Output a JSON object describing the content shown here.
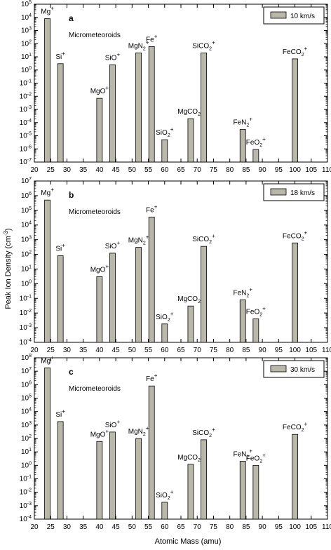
{
  "figure": {
    "xlabel": "Atomic Mass (amu)",
    "ylabel": "Peak Ion Density (cm",
    "ylabel_sup": "-3",
    "ylabel_close": ")"
  },
  "chart_data": [
    {
      "type": "bar",
      "panel": "a",
      "annotation": "Micrometeoroids",
      "legend": "10 km/s",
      "legend_position": "top-right",
      "xlim": [
        20,
        110
      ],
      "xticks": [
        20,
        25,
        30,
        35,
        40,
        45,
        50,
        55,
        60,
        65,
        70,
        75,
        80,
        85,
        90,
        95,
        100,
        105,
        110
      ],
      "ylog": true,
      "yexp": [
        -7,
        5
      ],
      "bar_color": "#b9b7a9",
      "points": [
        {
          "x": 24,
          "y": 8000,
          "label": "Mg",
          "sup": "+"
        },
        {
          "x": 28,
          "y": 3,
          "label": "Si",
          "sup": "+"
        },
        {
          "x": 40,
          "y": 0.007,
          "label": "MgO",
          "sup": "+"
        },
        {
          "x": 44,
          "y": 2.5,
          "label": "SiO",
          "sup": "+"
        },
        {
          "x": 52,
          "y": 20,
          "label": "MgN",
          "sub": "2",
          "sup": "+"
        },
        {
          "x": 56,
          "y": 60,
          "label": "Fe",
          "sup": "+"
        },
        {
          "x": 60,
          "y": 5e-06,
          "label": "SiO",
          "sub": "2",
          "sup": "+"
        },
        {
          "x": 68,
          "y": 0.0002,
          "label": "MgCO",
          "sub": "2",
          "sup": "+"
        },
        {
          "x": 72,
          "y": 20,
          "label": "SiCO",
          "sub": "2",
          "sup": "+"
        },
        {
          "x": 84,
          "y": 3e-05,
          "label": "FeN",
          "sub": "2",
          "sup": "+"
        },
        {
          "x": 88,
          "y": 9e-07,
          "label": "FeO",
          "sub": "2",
          "sup": "+"
        },
        {
          "x": 100,
          "y": 7,
          "label": "FeCO",
          "sub": "2",
          "sup": "+"
        }
      ]
    },
    {
      "type": "bar",
      "panel": "b",
      "annotation": "Micrometeoroids",
      "legend": "18 km/s",
      "legend_position": "top-right",
      "xlim": [
        20,
        110
      ],
      "xticks": [
        20,
        25,
        30,
        35,
        40,
        45,
        50,
        55,
        60,
        65,
        70,
        75,
        80,
        85,
        90,
        95,
        100,
        105,
        110
      ],
      "ylog": true,
      "yexp": [
        -4,
        7
      ],
      "bar_color": "#b9b7a9",
      "points": [
        {
          "x": 24,
          "y": 500000,
          "label": "Mg",
          "sup": "+"
        },
        {
          "x": 28,
          "y": 80,
          "label": "Si",
          "sup": "+"
        },
        {
          "x": 40,
          "y": 3,
          "label": "MgO",
          "sup": "+"
        },
        {
          "x": 44,
          "y": 120,
          "label": "SiO",
          "sup": "+"
        },
        {
          "x": 52,
          "y": 300,
          "label": "MgN",
          "sub": "2",
          "sup": "+"
        },
        {
          "x": 56,
          "y": 35000,
          "label": "Fe",
          "sup": "+"
        },
        {
          "x": 60,
          "y": 0.0018,
          "label": "SiO",
          "sub": "2",
          "sup": "+"
        },
        {
          "x": 68,
          "y": 0.03,
          "label": "MgCO",
          "sub": "2",
          "sup": "+"
        },
        {
          "x": 72,
          "y": 350,
          "label": "SiCO",
          "sub": "2",
          "sup": "+"
        },
        {
          "x": 84,
          "y": 0.08,
          "label": "FeN",
          "sub": "2",
          "sup": "+"
        },
        {
          "x": 88,
          "y": 0.004,
          "label": "FeO",
          "sub": "2",
          "sup": "+"
        },
        {
          "x": 100,
          "y": 600,
          "label": "FeCO",
          "sub": "2",
          "sup": "+"
        }
      ]
    },
    {
      "type": "bar",
      "panel": "c",
      "annotation": "Micrometeoroids",
      "legend": "30 km/s",
      "legend_position": "top-right",
      "xlim": [
        20,
        110
      ],
      "xticks": [
        20,
        25,
        30,
        35,
        40,
        45,
        50,
        55,
        60,
        65,
        70,
        75,
        80,
        85,
        90,
        95,
        100,
        105,
        110
      ],
      "ylog": true,
      "yexp": [
        -4,
        8
      ],
      "bar_color": "#b9b7a9",
      "points": [
        {
          "x": 24,
          "y": 18000000,
          "label": "Mg",
          "sup": "+"
        },
        {
          "x": 28,
          "y": 1800,
          "label": "Si",
          "sup": "+"
        },
        {
          "x": 40,
          "y": 60,
          "label": "MgO",
          "sup": "+"
        },
        {
          "x": 44,
          "y": 300,
          "label": "SiO",
          "sup": "+"
        },
        {
          "x": 52,
          "y": 100,
          "label": "MgN",
          "sub": "2",
          "sup": "+"
        },
        {
          "x": 56,
          "y": 800000,
          "label": "Fe",
          "sup": "+"
        },
        {
          "x": 60,
          "y": 0.0018,
          "label": "SiO",
          "sub": "2",
          "sup": "+"
        },
        {
          "x": 68,
          "y": 1.2,
          "label": "MgCO",
          "sub": "2",
          "sup": "+"
        },
        {
          "x": 72,
          "y": 80,
          "label": "SiCO",
          "sub": "2",
          "sup": "+"
        },
        {
          "x": 84,
          "y": 2,
          "label": "FeN",
          "sub": "2",
          "sup": "+"
        },
        {
          "x": 88,
          "y": 1,
          "label": "FeO",
          "sub": "2",
          "sup": "+"
        },
        {
          "x": 100,
          "y": 200,
          "label": "FeCO",
          "sub": "2",
          "sup": "+"
        }
      ]
    }
  ]
}
